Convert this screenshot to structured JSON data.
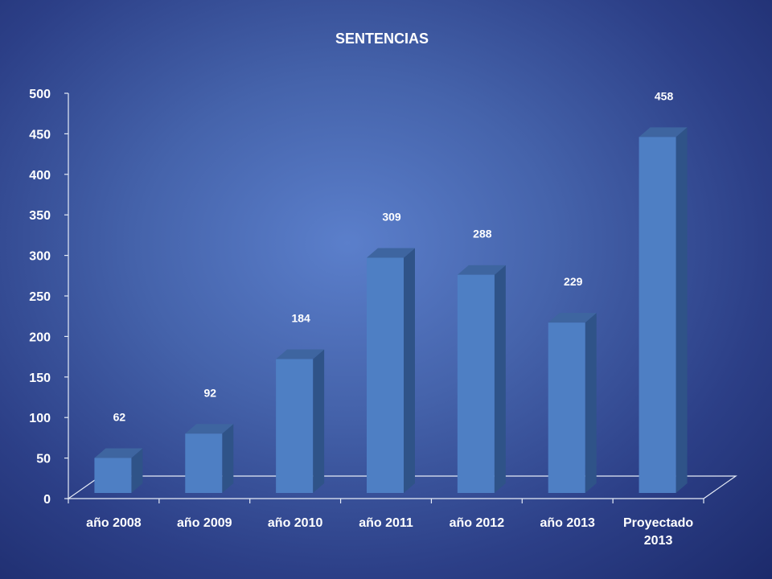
{
  "chart_data": {
    "type": "bar",
    "title": "SENTENCIAS",
    "categories": [
      [
        "año 2008"
      ],
      [
        "año 2009"
      ],
      [
        "año 2010"
      ],
      [
        "año 2011"
      ],
      [
        "año 2012"
      ],
      [
        "año 2013"
      ],
      [
        "Proyectado",
        "2013"
      ]
    ],
    "values": [
      62,
      92,
      184,
      309,
      288,
      229,
      458
    ],
    "ylim": [
      0,
      500
    ],
    "yticks": [
      0,
      50,
      100,
      150,
      200,
      250,
      300,
      350,
      400,
      450,
      500
    ],
    "xlabel": "",
    "ylabel": "",
    "grid": false,
    "legend": "none",
    "bar_style": "3d",
    "colors": {
      "bar_front": "#4e7fc4",
      "bar_side": "#2f5388",
      "bar_top": "#3e65a0",
      "text": "#ffffff",
      "axis": "#e6ecf7"
    }
  }
}
